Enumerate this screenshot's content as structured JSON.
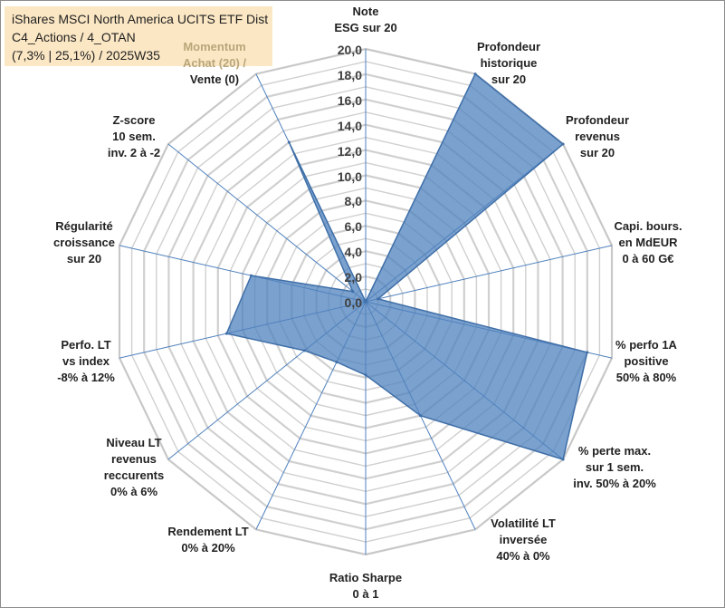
{
  "chart_data": {
    "type": "radar",
    "title_lines": [
      "iShares MSCI North America UCITS ETF Dist",
      "C4_Actions / 4_OTAN",
      "(7,3% | 25,1%) / 2025W35"
    ],
    "rlim": [
      0,
      20
    ],
    "tick_labels": [
      "0,0",
      "2,0",
      "4,0",
      "6,0",
      "8,0",
      "10,0",
      "12,0",
      "14,0",
      "16,0",
      "18,0",
      "20,0"
    ],
    "grid": true,
    "categories": [
      [
        "Note",
        "ESG sur 20"
      ],
      [
        "Profondeur",
        "historique",
        "sur 20"
      ],
      [
        "Profondeur",
        "revenus",
        "sur 20"
      ],
      [
        "Capi. bours.",
        "en MdEUR",
        "0 à 60 G€"
      ],
      [
        "% perfo 1A",
        "positive",
        "50% à 80%"
      ],
      [
        "% perte max.",
        "sur 1 sem.",
        "inv. 50% à 20%"
      ],
      [
        "Volatilité LT",
        "inversée",
        "40% à 0%"
      ],
      [
        "Ratio Sharpe",
        "0 à 1"
      ],
      [
        "Rendement LT",
        "0% à 20%"
      ],
      [
        "Niveau LT",
        "revenus",
        "reccurents",
        "0% à 6%"
      ],
      [
        "Perfo. LT",
        "vs index",
        "-8% à 12%"
      ],
      [
        "Régularité",
        "croissance",
        "sur 20"
      ],
      [
        "Z-score",
        "10 sem.",
        "inv. 2 à -2"
      ],
      [
        "Momentum",
        "Achat (20) /",
        "Vente (0)"
      ]
    ],
    "series": [
      {
        "values": [
          0,
          20,
          20,
          1,
          18,
          20,
          10,
          5.8,
          5.3,
          6.2,
          11.3,
          9.3,
          1.3,
          14
        ],
        "color": "#4f81bd"
      }
    ],
    "colors": {
      "fill": "#4f81bd",
      "fill_opacity": 0.75,
      "grid": "#d0d0d0",
      "spoke": "#4f81bd",
      "title_box": "#fbe7c4"
    }
  }
}
